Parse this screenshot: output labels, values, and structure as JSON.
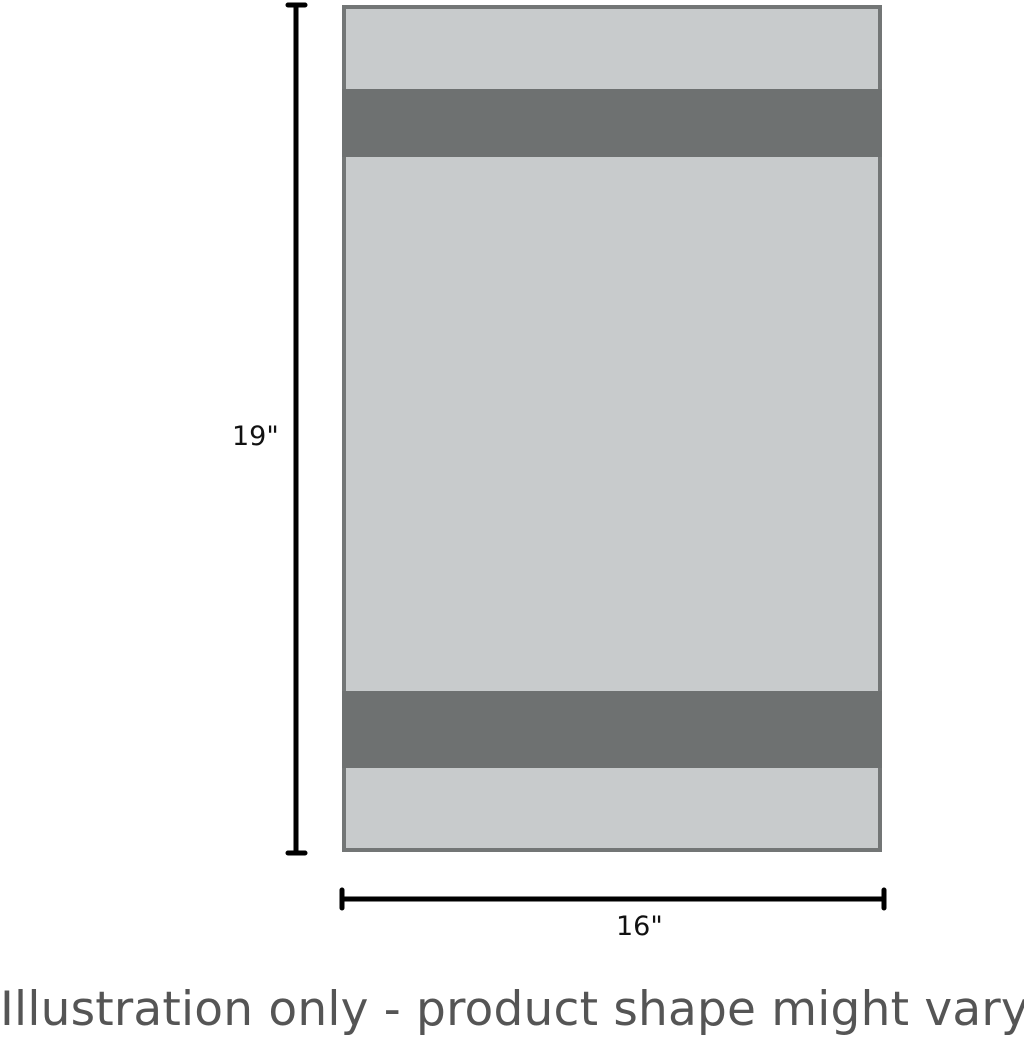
{
  "diagram": {
    "height_label": "19\"",
    "width_label": "16\"",
    "caption": "Illustration only - product shape might vary.",
    "colors": {
      "body_fill": "#c8cbcc",
      "band_fill": "#6e7171",
      "outline": "#737676",
      "dimension_line": "#000000",
      "caption": "#555555"
    }
  }
}
